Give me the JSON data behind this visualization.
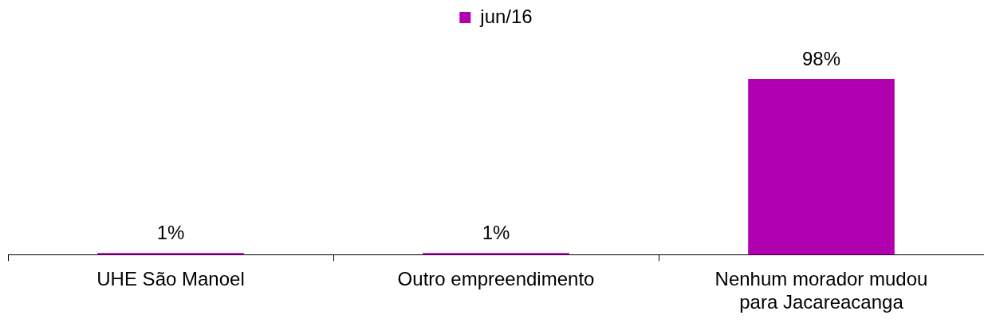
{
  "chart_data": {
    "type": "bar",
    "categories": [
      "UHE São Manoel",
      "Outro empreendimento",
      "Nenhum morador mudou para Jacareacanga"
    ],
    "series": [
      {
        "name": "jun/16",
        "color": "#b000b0",
        "values": [
          1,
          1,
          98
        ],
        "value_labels": [
          "1%",
          "1%",
          "98%"
        ]
      }
    ],
    "legend": "top",
    "tick_labels": "x",
    "grid": false
  }
}
